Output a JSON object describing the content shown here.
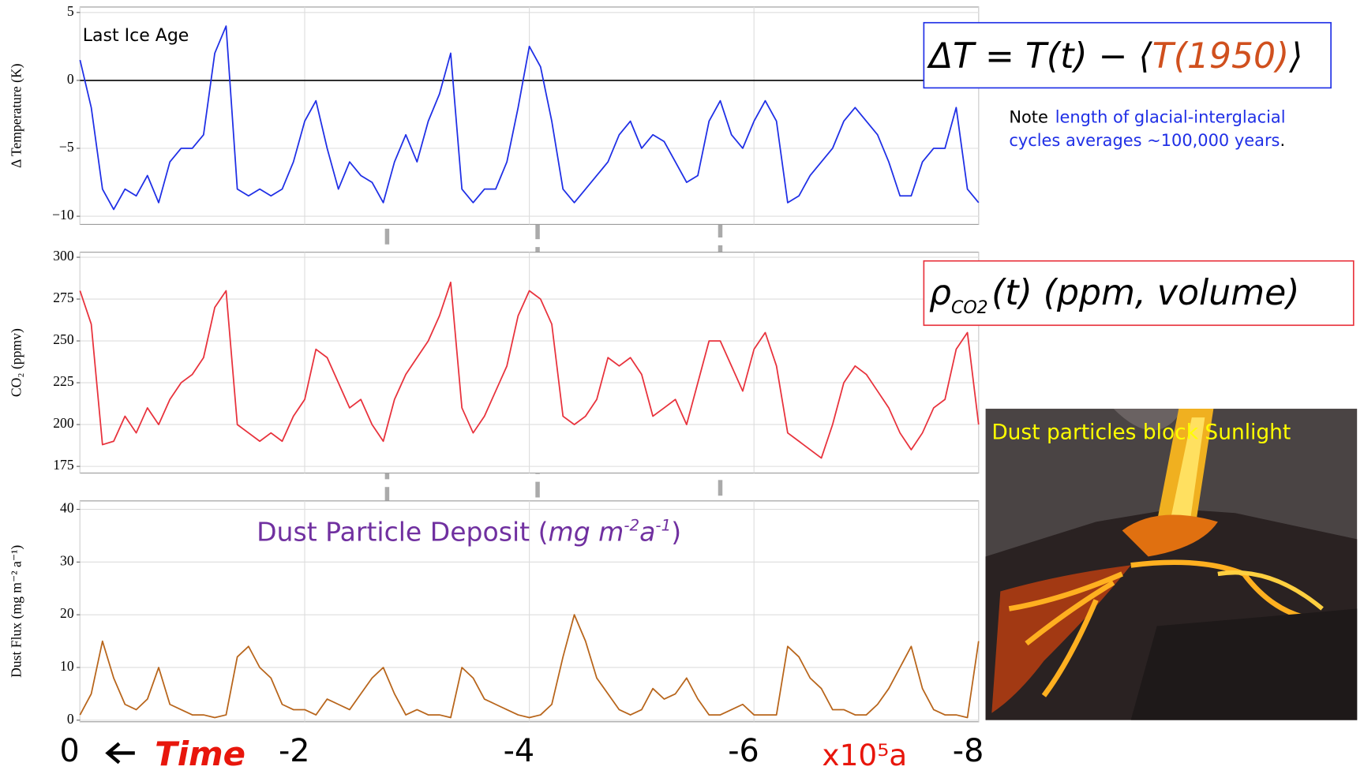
{
  "chart_data": [
    {
      "type": "line",
      "ylabel": "Δ Temperature (K)",
      "x": [
        0,
        -0.1,
        -0.2,
        -0.3,
        -0.4,
        -0.5,
        -0.6,
        -0.7,
        -0.8,
        -0.9,
        -1,
        -1.1,
        -1.2,
        -1.3,
        -1.4,
        -1.5,
        -1.6,
        -1.7,
        -1.8,
        -1.9,
        -2,
        -2.1,
        -2.2,
        -2.3,
        -2.4,
        -2.5,
        -2.6,
        -2.7,
        -2.8,
        -2.9,
        -3,
        -3.1,
        -3.2,
        -3.3,
        -3.4,
        -3.5,
        -3.6,
        -3.7,
        -3.8,
        -3.9,
        -4,
        -4.1,
        -4.2,
        -4.3,
        -4.4,
        -4.5,
        -4.6,
        -4.7,
        -4.8,
        -4.9,
        -5,
        -5.1,
        -5.2,
        -5.3,
        -5.4,
        -5.5,
        -5.6,
        -5.7,
        -5.8,
        -5.9,
        -6,
        -6.1,
        -6.2,
        -6.3,
        -6.4,
        -6.5,
        -6.6,
        -6.7,
        -6.8,
        -6.9,
        -7,
        -7.1,
        -7.2,
        -7.3,
        -7.4,
        -7.5,
        -7.6,
        -7.7,
        -7.8,
        -7.9,
        -8
      ],
      "values": [
        1.5,
        -2,
        -8,
        -9.5,
        -8,
        -8.5,
        -7,
        -9,
        -6,
        -5,
        -5,
        -4,
        2,
        4,
        -8,
        -8.5,
        -8,
        -8.5,
        -8,
        -6,
        -3,
        -1.5,
        -5,
        -8,
        -6,
        -7,
        -7.5,
        -9,
        -6,
        -4,
        -6,
        -3,
        -1,
        2,
        -8,
        -9,
        -8,
        -8,
        -6,
        -2,
        2.5,
        1,
        -3,
        -8,
        -9,
        -8,
        -7,
        -6,
        -4,
        -3,
        -5,
        -4,
        -4.5,
        -6,
        -7.5,
        -7,
        -3,
        -1.5,
        -4,
        -5,
        -3,
        -1.5,
        -3,
        -9,
        -8.5,
        -7,
        -6,
        -5,
        -3,
        -2,
        -3,
        -4,
        -6,
        -8.5,
        -8.5,
        -6,
        -5,
        -5,
        -2,
        -8,
        -9
      ],
      "color": "#1f2fe6",
      "xlim": [
        0,
        -8
      ],
      "ylim": [
        -10.6,
        5.4
      ],
      "yticks": [
        {
          "value": -10,
          "label": "−10"
        },
        {
          "value": -5,
          "label": "−5"
        },
        0,
        5
      ],
      "grid": true,
      "zero_line": true,
      "annotation": "Last Ice Age",
      "formula": [
        "ΔT = T(t) − ⟨",
        "T(1950)",
        "⟩"
      ],
      "note": [
        "Note",
        "length of glacial-interglacial",
        "cycles averages ~100,000 years",
        "."
      ]
    },
    {
      "type": "line",
      "ylabel": "CO₂ (ppmv)",
      "x": [
        0,
        -0.1,
        -0.2,
        -0.3,
        -0.4,
        -0.5,
        -0.6,
        -0.7,
        -0.8,
        -0.9,
        -1,
        -1.1,
        -1.2,
        -1.3,
        -1.4,
        -1.5,
        -1.6,
        -1.7,
        -1.8,
        -1.9,
        -2,
        -2.1,
        -2.2,
        -2.3,
        -2.4,
        -2.5,
        -2.6,
        -2.7,
        -2.8,
        -2.9,
        -3,
        -3.1,
        -3.2,
        -3.3,
        -3.4,
        -3.5,
        -3.6,
        -3.7,
        -3.8,
        -3.9,
        -4,
        -4.1,
        -4.2,
        -4.3,
        -4.4,
        -4.5,
        -4.6,
        -4.7,
        -4.8,
        -4.9,
        -5,
        -5.1,
        -5.2,
        -5.3,
        -5.4,
        -5.5,
        -5.6,
        -5.7,
        -5.8,
        -5.9,
        -6,
        -6.1,
        -6.2,
        -6.3,
        -6.4,
        -6.5,
        -6.6,
        -6.7,
        -6.8,
        -6.9,
        -7,
        -7.1,
        -7.2,
        -7.3,
        -7.4,
        -7.5,
        -7.6,
        -7.7,
        -7.8,
        -7.9,
        -8
      ],
      "values": [
        280,
        260,
        188,
        190,
        205,
        195,
        210,
        200,
        215,
        225,
        230,
        240,
        270,
        280,
        200,
        195,
        190,
        195,
        190,
        205,
        215,
        245,
        240,
        225,
        210,
        215,
        200,
        190,
        215,
        230,
        240,
        250,
        265,
        285,
        210,
        195,
        205,
        220,
        235,
        265,
        280,
        275,
        260,
        205,
        200,
        205,
        215,
        240,
        235,
        240,
        230,
        205,
        210,
        215,
        200,
        225,
        250,
        250,
        235,
        220,
        245,
        255,
        235,
        195,
        190,
        185,
        180,
        200,
        225,
        235,
        230,
        220,
        210,
        195,
        185,
        195,
        210,
        215,
        245,
        255,
        200
      ],
      "color": "#e8323c",
      "xlim": [
        0,
        -8
      ],
      "ylim": [
        171,
        303
      ],
      "yticks": [
        175,
        200,
        225,
        250,
        275,
        300
      ],
      "grid": true,
      "formula": [
        "ρ",
        "CO2",
        "(t) (ppm, volume)"
      ]
    },
    {
      "type": "line",
      "ylabel": "Dust Flux (mg m⁻² a⁻¹)",
      "x": [
        0,
        -0.1,
        -0.2,
        -0.3,
        -0.4,
        -0.5,
        -0.6,
        -0.7,
        -0.8,
        -0.9,
        -1,
        -1.1,
        -1.2,
        -1.3,
        -1.4,
        -1.5,
        -1.6,
        -1.7,
        -1.8,
        -1.9,
        -2,
        -2.1,
        -2.2,
        -2.3,
        -2.4,
        -2.5,
        -2.6,
        -2.7,
        -2.8,
        -2.9,
        -3,
        -3.1,
        -3.2,
        -3.3,
        -3.4,
        -3.5,
        -3.6,
        -3.7,
        -3.8,
        -3.9,
        -4,
        -4.1,
        -4.2,
        -4.3,
        -4.4,
        -4.5,
        -4.6,
        -4.7,
        -4.8,
        -4.9,
        -5,
        -5.1,
        -5.2,
        -5.3,
        -5.4,
        -5.5,
        -5.6,
        -5.7,
        -5.8,
        -5.9,
        -6,
        -6.1,
        -6.2,
        -6.3,
        -6.4,
        -6.5,
        -6.6,
        -6.7,
        -6.8,
        -6.9,
        -7,
        -7.1,
        -7.2,
        -7.3,
        -7.4,
        -7.5,
        -7.6,
        -7.7,
        -7.8,
        -7.9,
        -8
      ],
      "values": [
        1,
        5,
        15,
        8,
        3,
        2,
        4,
        10,
        3,
        2,
        1,
        1,
        0.5,
        1,
        12,
        14,
        10,
        8,
        3,
        2,
        2,
        1,
        4,
        3,
        2,
        5,
        8,
        10,
        5,
        1,
        2,
        1,
        1,
        0.5,
        10,
        8,
        4,
        3,
        2,
        1,
        0.5,
        1,
        3,
        12,
        20,
        15,
        8,
        5,
        2,
        1,
        2,
        6,
        4,
        5,
        8,
        4,
        1,
        1,
        2,
        3,
        1,
        1,
        1,
        14,
        12,
        8,
        6,
        2,
        2,
        1,
        1,
        3,
        6,
        10,
        14,
        6,
        2,
        1,
        1,
        0.5,
        15
      ],
      "color": "#b8651b",
      "xlim": [
        0,
        -8
      ],
      "ylim": [
        -0.3,
        41.6
      ],
      "yticks": [
        0,
        10,
        20,
        30,
        40
      ],
      "xticks": [
        0,
        -2,
        -4,
        -6,
        -8
      ],
      "grid": true,
      "xlabel": "x10⁵a",
      "time_label": "Time",
      "annotation": [
        "Dust Particle Deposit (",
        "mg m",
        "-2",
        "a",
        "-1",
        ")"
      ],
      "image_caption": "Dust particles block Sunlight"
    }
  ]
}
